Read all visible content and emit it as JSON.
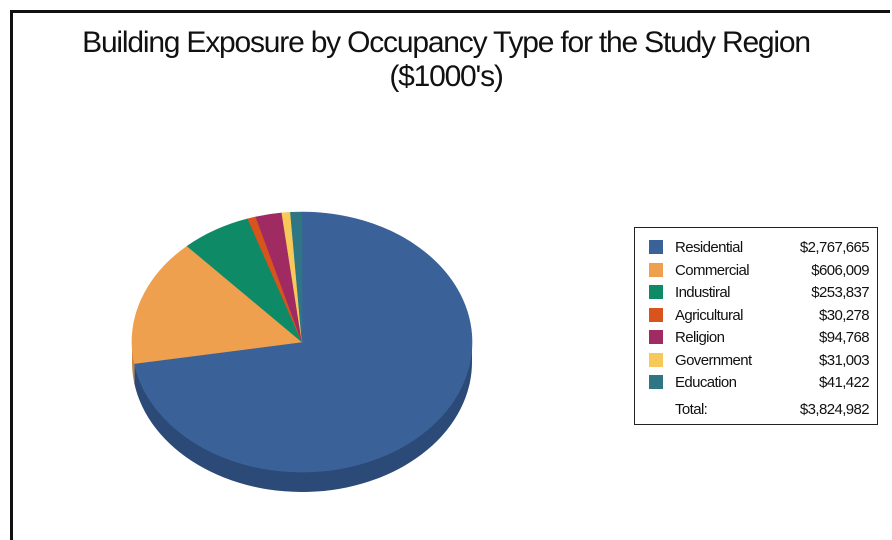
{
  "chart_data": {
    "type": "pie",
    "title": "Building Exposure by Occupancy Type for the Study Region",
    "subtitle": "($1000's)",
    "categories": [
      "Residential",
      "Commercial",
      "Industiral",
      "Agricultural",
      "Religion",
      "Government",
      "Education"
    ],
    "values": [
      2767665,
      606009,
      253837,
      30278,
      94768,
      31003,
      41422
    ],
    "value_labels": [
      "$2,767,665",
      "$606,009",
      "$253,837",
      "$30,278",
      "$94,768",
      "$31,003",
      "$41,422"
    ],
    "colors": [
      "#3B6199",
      "#EEA04E",
      "#0E8A66",
      "#D8541C",
      "#A02A62",
      "#F7C95A",
      "#2E7683"
    ],
    "side_colors": [
      "#2B4A78",
      "#C98538",
      "#0A6B4E",
      "#A84016",
      "#7A1F4B",
      "#CFA746",
      "#23595F"
    ],
    "total_label": "Total:",
    "total_value": "$3,824,982",
    "legend_position": "right"
  }
}
